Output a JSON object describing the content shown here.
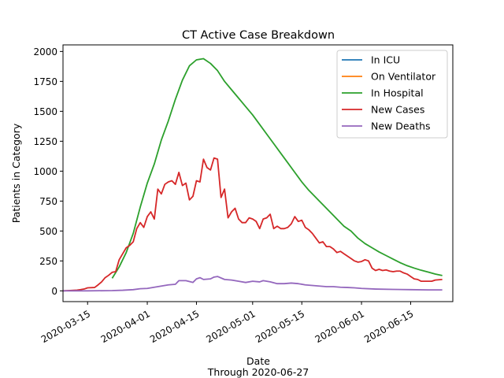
{
  "chart_data": {
    "type": "line",
    "title": "CT Active Case Breakdown",
    "xlabel": "Date",
    "xlabel_sub": "Through 2020-06-27",
    "ylabel": "Patients in Category",
    "xlim": [
      "2020-03-08",
      "2020-06-27"
    ],
    "ylim": [
      -90,
      2055
    ],
    "yticks": [
      0,
      250,
      500,
      750,
      1000,
      1250,
      1500,
      1750,
      2000
    ],
    "ytick_labels": [
      "0",
      "250",
      "500",
      "750",
      "1000",
      "1250",
      "1500",
      "1750",
      "2000"
    ],
    "xticks": [
      "2020-03-15",
      "2020-04-01",
      "2020-04-15",
      "2020-05-01",
      "2020-05-15",
      "2020-06-01",
      "2020-06-15"
    ],
    "legend_position": "top-right",
    "series": [
      {
        "name": "In ICU",
        "color": "#1f77b4",
        "points": []
      },
      {
        "name": "On Ventilator",
        "color": "#ff7f0e",
        "points": []
      },
      {
        "name": "In Hospital",
        "color": "#2ca02c",
        "points": [
          [
            "2020-03-22",
            105
          ],
          [
            "2020-03-24",
            200
          ],
          [
            "2020-03-26",
            320
          ],
          [
            "2020-03-28",
            480
          ],
          [
            "2020-03-30",
            700
          ],
          [
            "2020-04-01",
            900
          ],
          [
            "2020-04-03",
            1060
          ],
          [
            "2020-04-05",
            1260
          ],
          [
            "2020-04-07",
            1420
          ],
          [
            "2020-04-09",
            1600
          ],
          [
            "2020-04-11",
            1760
          ],
          [
            "2020-04-13",
            1880
          ],
          [
            "2020-04-15",
            1930
          ],
          [
            "2020-04-17",
            1940
          ],
          [
            "2020-04-19",
            1900
          ],
          [
            "2020-04-21",
            1840
          ],
          [
            "2020-04-23",
            1750
          ],
          [
            "2020-04-25",
            1680
          ],
          [
            "2020-04-27",
            1610
          ],
          [
            "2020-04-29",
            1540
          ],
          [
            "2020-05-01",
            1470
          ],
          [
            "2020-05-03",
            1390
          ],
          [
            "2020-05-05",
            1310
          ],
          [
            "2020-05-07",
            1230
          ],
          [
            "2020-05-09",
            1150
          ],
          [
            "2020-05-11",
            1070
          ],
          [
            "2020-05-13",
            990
          ],
          [
            "2020-05-15",
            910
          ],
          [
            "2020-05-17",
            840
          ],
          [
            "2020-05-19",
            780
          ],
          [
            "2020-05-21",
            720
          ],
          [
            "2020-05-23",
            660
          ],
          [
            "2020-05-25",
            600
          ],
          [
            "2020-05-27",
            540
          ],
          [
            "2020-05-29",
            500
          ],
          [
            "2020-05-31",
            440
          ],
          [
            "2020-06-02",
            395
          ],
          [
            "2020-06-04",
            360
          ],
          [
            "2020-06-06",
            325
          ],
          [
            "2020-06-08",
            295
          ],
          [
            "2020-06-10",
            265
          ],
          [
            "2020-06-12",
            235
          ],
          [
            "2020-06-14",
            210
          ],
          [
            "2020-06-16",
            190
          ],
          [
            "2020-06-18",
            172
          ],
          [
            "2020-06-20",
            157
          ],
          [
            "2020-06-22",
            140
          ],
          [
            "2020-06-24",
            128
          ]
        ]
      },
      {
        "name": "New Cases",
        "color": "#d62728",
        "points": [
          [
            "2020-03-08",
            0
          ],
          [
            "2020-03-10",
            3
          ],
          [
            "2020-03-12",
            6
          ],
          [
            "2020-03-13",
            10
          ],
          [
            "2020-03-14",
            15
          ],
          [
            "2020-03-15",
            25
          ],
          [
            "2020-03-17",
            28
          ],
          [
            "2020-03-18",
            50
          ],
          [
            "2020-03-19",
            75
          ],
          [
            "2020-03-20",
            110
          ],
          [
            "2020-03-21",
            130
          ],
          [
            "2020-03-22",
            155
          ],
          [
            "2020-03-23",
            160
          ],
          [
            "2020-03-24",
            260
          ],
          [
            "2020-03-25",
            310
          ],
          [
            "2020-03-26",
            360
          ],
          [
            "2020-03-27",
            380
          ],
          [
            "2020-03-28",
            410
          ],
          [
            "2020-03-29",
            520
          ],
          [
            "2020-03-30",
            570
          ],
          [
            "2020-03-31",
            530
          ],
          [
            "2020-04-01",
            620
          ],
          [
            "2020-04-02",
            660
          ],
          [
            "2020-04-03",
            600
          ],
          [
            "2020-04-04",
            850
          ],
          [
            "2020-04-05",
            810
          ],
          [
            "2020-04-06",
            890
          ],
          [
            "2020-04-07",
            910
          ],
          [
            "2020-04-08",
            920
          ],
          [
            "2020-04-09",
            890
          ],
          [
            "2020-04-10",
            990
          ],
          [
            "2020-04-11",
            880
          ],
          [
            "2020-04-12",
            900
          ],
          [
            "2020-04-13",
            760
          ],
          [
            "2020-04-14",
            790
          ],
          [
            "2020-04-15",
            920
          ],
          [
            "2020-04-16",
            910
          ],
          [
            "2020-04-17",
            1100
          ],
          [
            "2020-04-18",
            1030
          ],
          [
            "2020-04-19",
            1010
          ],
          [
            "2020-04-20",
            1110
          ],
          [
            "2020-04-21",
            1100
          ],
          [
            "2020-04-22",
            780
          ],
          [
            "2020-04-23",
            850
          ],
          [
            "2020-04-24",
            610
          ],
          [
            "2020-04-25",
            660
          ],
          [
            "2020-04-26",
            690
          ],
          [
            "2020-04-27",
            600
          ],
          [
            "2020-04-28",
            570
          ],
          [
            "2020-04-29",
            570
          ],
          [
            "2020-04-30",
            610
          ],
          [
            "2020-05-01",
            600
          ],
          [
            "2020-05-02",
            580
          ],
          [
            "2020-05-03",
            520
          ],
          [
            "2020-05-04",
            600
          ],
          [
            "2020-05-05",
            610
          ],
          [
            "2020-05-06",
            640
          ],
          [
            "2020-05-07",
            520
          ],
          [
            "2020-05-08",
            540
          ],
          [
            "2020-05-09",
            520
          ],
          [
            "2020-05-10",
            520
          ],
          [
            "2020-05-11",
            530
          ],
          [
            "2020-05-12",
            560
          ],
          [
            "2020-05-13",
            620
          ],
          [
            "2020-05-14",
            580
          ],
          [
            "2020-05-15",
            590
          ],
          [
            "2020-05-16",
            530
          ],
          [
            "2020-05-17",
            510
          ],
          [
            "2020-05-18",
            480
          ],
          [
            "2020-05-19",
            440
          ],
          [
            "2020-05-20",
            400
          ],
          [
            "2020-05-21",
            410
          ],
          [
            "2020-05-22",
            370
          ],
          [
            "2020-05-23",
            370
          ],
          [
            "2020-05-24",
            350
          ],
          [
            "2020-05-25",
            320
          ],
          [
            "2020-05-26",
            330
          ],
          [
            "2020-05-27",
            310
          ],
          [
            "2020-05-28",
            290
          ],
          [
            "2020-05-29",
            270
          ],
          [
            "2020-05-30",
            250
          ],
          [
            "2020-05-31",
            240
          ],
          [
            "2020-06-01",
            245
          ],
          [
            "2020-06-02",
            260
          ],
          [
            "2020-06-03",
            250
          ],
          [
            "2020-06-04",
            190
          ],
          [
            "2020-06-05",
            170
          ],
          [
            "2020-06-06",
            180
          ],
          [
            "2020-06-07",
            170
          ],
          [
            "2020-06-08",
            175
          ],
          [
            "2020-06-09",
            165
          ],
          [
            "2020-06-10",
            160
          ],
          [
            "2020-06-11",
            165
          ],
          [
            "2020-06-12",
            165
          ],
          [
            "2020-06-13",
            150
          ],
          [
            "2020-06-14",
            140
          ],
          [
            "2020-06-15",
            120
          ],
          [
            "2020-06-16",
            100
          ],
          [
            "2020-06-17",
            95
          ],
          [
            "2020-06-18",
            80
          ],
          [
            "2020-06-19",
            80
          ],
          [
            "2020-06-20",
            80
          ],
          [
            "2020-06-21",
            80
          ],
          [
            "2020-06-22",
            90
          ],
          [
            "2020-06-24",
            95
          ]
        ]
      },
      {
        "name": "New Deaths",
        "color": "#9467bd",
        "points": [
          [
            "2020-03-08",
            0
          ],
          [
            "2020-03-15",
            0
          ],
          [
            "2020-03-22",
            2
          ],
          [
            "2020-03-25",
            5
          ],
          [
            "2020-03-28",
            10
          ],
          [
            "2020-03-30",
            18
          ],
          [
            "2020-04-01",
            20
          ],
          [
            "2020-04-03",
            30
          ],
          [
            "2020-04-05",
            40
          ],
          [
            "2020-04-07",
            50
          ],
          [
            "2020-04-09",
            55
          ],
          [
            "2020-04-10",
            85
          ],
          [
            "2020-04-12",
            85
          ],
          [
            "2020-04-14",
            70
          ],
          [
            "2020-04-15",
            100
          ],
          [
            "2020-04-16",
            110
          ],
          [
            "2020-04-17",
            95
          ],
          [
            "2020-04-19",
            100
          ],
          [
            "2020-04-20",
            115
          ],
          [
            "2020-04-21",
            120
          ],
          [
            "2020-04-23",
            95
          ],
          [
            "2020-04-25",
            90
          ],
          [
            "2020-04-27",
            80
          ],
          [
            "2020-04-29",
            70
          ],
          [
            "2020-05-01",
            80
          ],
          [
            "2020-05-03",
            75
          ],
          [
            "2020-05-04",
            85
          ],
          [
            "2020-05-06",
            75
          ],
          [
            "2020-05-08",
            60
          ],
          [
            "2020-05-10",
            60
          ],
          [
            "2020-05-12",
            65
          ],
          [
            "2020-05-14",
            60
          ],
          [
            "2020-05-16",
            50
          ],
          [
            "2020-05-18",
            45
          ],
          [
            "2020-05-20",
            40
          ],
          [
            "2020-05-22",
            35
          ],
          [
            "2020-05-24",
            35
          ],
          [
            "2020-05-26",
            30
          ],
          [
            "2020-05-28",
            28
          ],
          [
            "2020-05-30",
            25
          ],
          [
            "2020-06-01",
            20
          ],
          [
            "2020-06-05",
            15
          ],
          [
            "2020-06-10",
            12
          ],
          [
            "2020-06-15",
            10
          ],
          [
            "2020-06-20",
            8
          ],
          [
            "2020-06-24",
            8
          ]
        ]
      }
    ]
  }
}
